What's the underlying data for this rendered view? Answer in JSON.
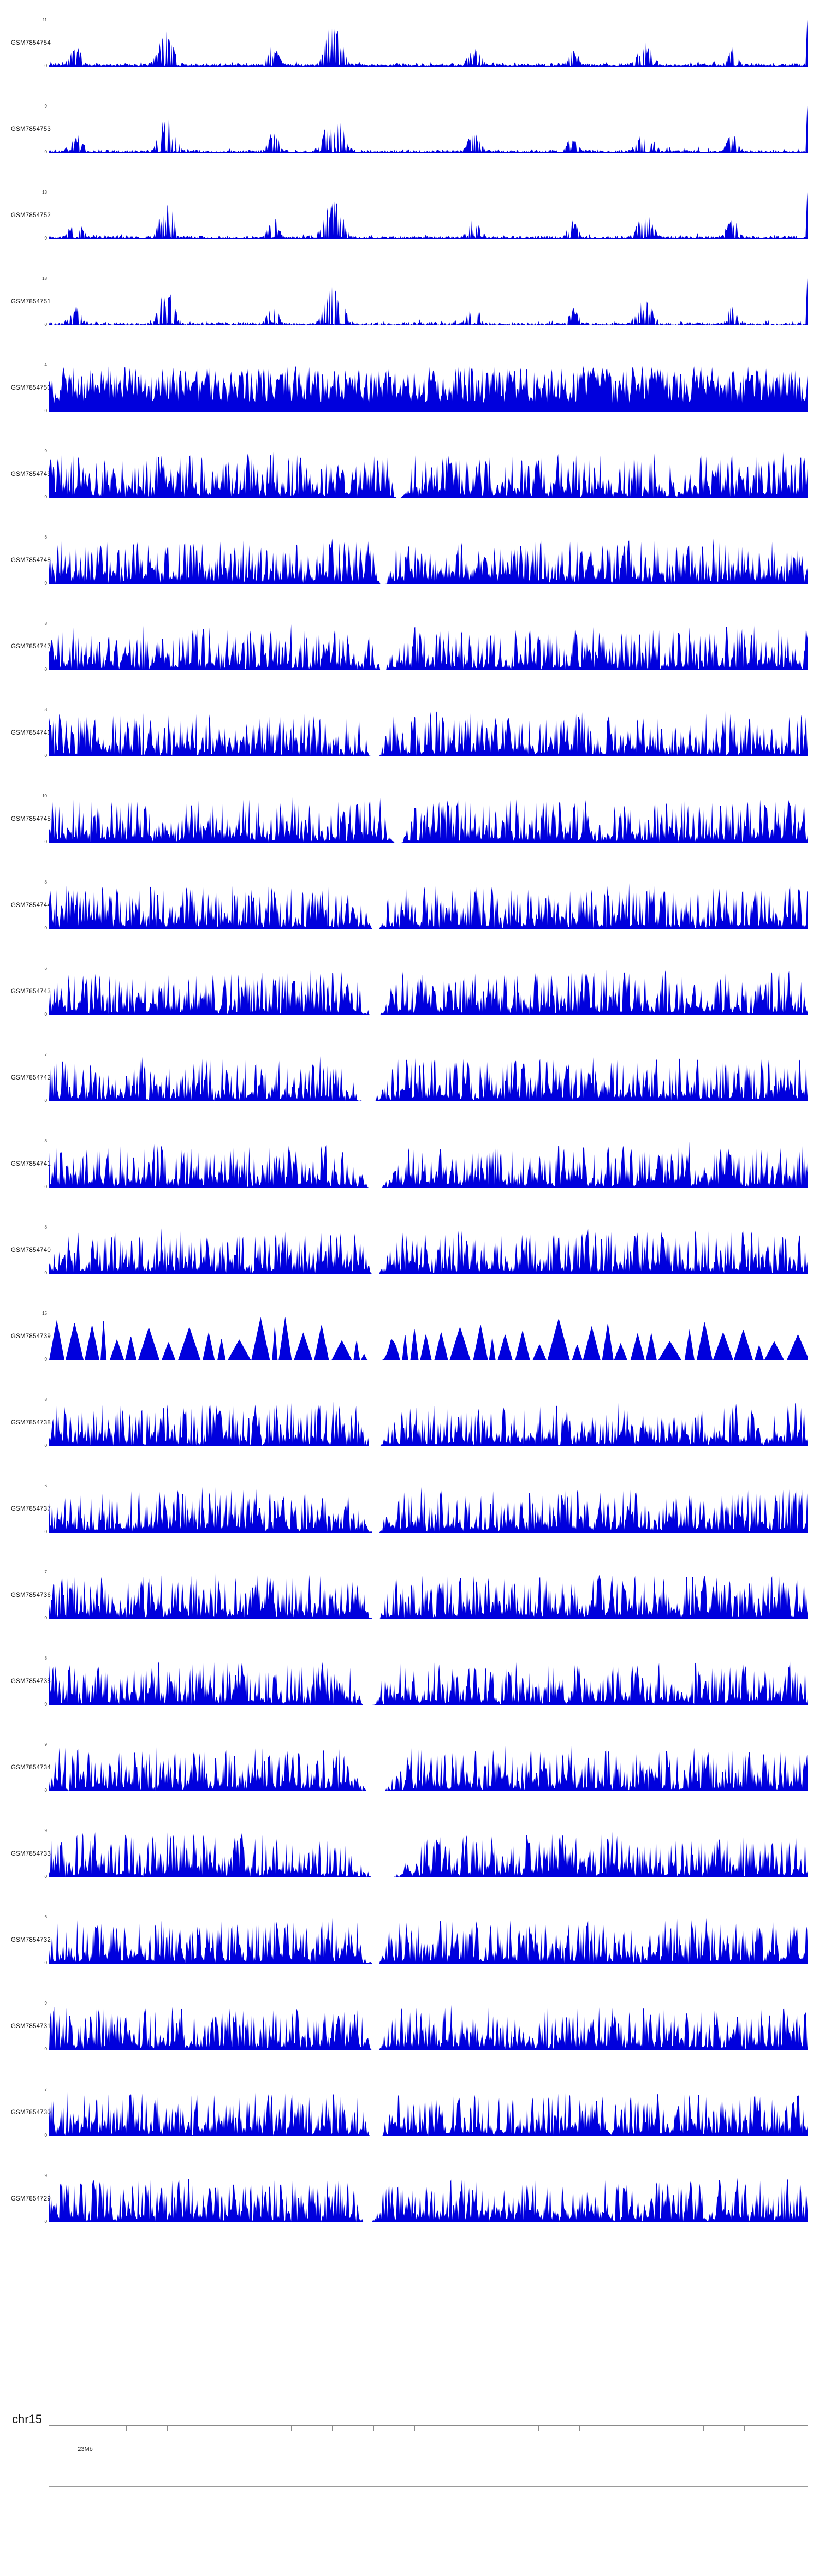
{
  "chart_data": {
    "type": "area",
    "subtype": "genome-browser-coverage-tracks",
    "chromosome": "chr15",
    "signal_color": "#0000dd",
    "ymin": 0,
    "ruler": {
      "tick_count": 18,
      "labeled_tick": "23Mb",
      "labeled_tick_index": 0
    },
    "tracks": [
      {
        "label": "GSM7854754",
        "ymax": 11,
        "profile": "sparse"
      },
      {
        "label": "GSM7854753",
        "ymax": 9,
        "profile": "sparse"
      },
      {
        "label": "GSM7854752",
        "ymax": 13,
        "profile": "sparse"
      },
      {
        "label": "GSM7854751",
        "ymax": 18,
        "profile": "sparse"
      },
      {
        "label": "GSM7854750",
        "ymax": 4,
        "profile": "dense-high"
      },
      {
        "label": "GSM7854749",
        "ymax": 9,
        "profile": "dense",
        "gap_center": 0.46,
        "gap_width": 0.015
      },
      {
        "label": "GSM7854748",
        "ymax": 6,
        "profile": "dense",
        "gap_center": 0.44,
        "gap_width": 0.015
      },
      {
        "label": "GSM7854747",
        "ymax": 8,
        "profile": "dense",
        "gap_center": 0.44,
        "gap_width": 0.015
      },
      {
        "label": "GSM7854746",
        "ymax": 8,
        "profile": "dense",
        "gap_center": 0.43,
        "gap_width": 0.02
      },
      {
        "label": "GSM7854745",
        "ymax": 10,
        "profile": "dense",
        "gap_center": 0.46,
        "gap_width": 0.02
      },
      {
        "label": "GSM7854744",
        "ymax": 8,
        "profile": "dense",
        "gap_center": 0.43,
        "gap_width": 0.02
      },
      {
        "label": "GSM7854743",
        "ymax": 6,
        "profile": "dense",
        "gap_center": 0.43,
        "gap_width": 0.025
      },
      {
        "label": "GSM7854742",
        "ymax": 7,
        "profile": "dense",
        "gap_center": 0.42,
        "gap_width": 0.03
      },
      {
        "label": "GSM7854741",
        "ymax": 8,
        "profile": "dense",
        "gap_center": 0.43,
        "gap_width": 0.035
      },
      {
        "label": "GSM7854740",
        "ymax": 8,
        "profile": "dense",
        "gap_center": 0.43,
        "gap_width": 0.02
      },
      {
        "label": "GSM7854739",
        "ymax": 15,
        "profile": "blocky",
        "gap_center": 0.43,
        "gap_width": 0.03
      },
      {
        "label": "GSM7854738",
        "ymax": 8,
        "profile": "dense",
        "gap_center": 0.43,
        "gap_width": 0.025
      },
      {
        "label": "GSM7854737",
        "ymax": 6,
        "profile": "dense",
        "gap_center": 0.43,
        "gap_width": 0.02
      },
      {
        "label": "GSM7854736",
        "ymax": 7,
        "profile": "dense",
        "gap_center": 0.43,
        "gap_width": 0.02
      },
      {
        "label": "GSM7854735",
        "ymax": 8,
        "profile": "dense",
        "gap_center": 0.42,
        "gap_width": 0.025
      },
      {
        "label": "GSM7854734",
        "ymax": 9,
        "profile": "dense",
        "gap_center": 0.43,
        "gap_width": 0.045
      },
      {
        "label": "GSM7854733",
        "ymax": 9,
        "profile": "dense",
        "gap_center": 0.44,
        "gap_width": 0.055
      },
      {
        "label": "GSM7854732",
        "ymax": 6,
        "profile": "dense",
        "gap_center": 0.43,
        "gap_width": 0.02
      },
      {
        "label": "GSM7854731",
        "ymax": 9,
        "profile": "dense",
        "gap_center": 0.43,
        "gap_width": 0.02
      },
      {
        "label": "GSM7854730",
        "ymax": 7,
        "profile": "dense",
        "gap_center": 0.43,
        "gap_width": 0.025
      },
      {
        "label": "GSM7854729",
        "ymax": 9,
        "profile": "dense",
        "gap_center": 0.42,
        "gap_width": 0.02
      }
    ]
  }
}
